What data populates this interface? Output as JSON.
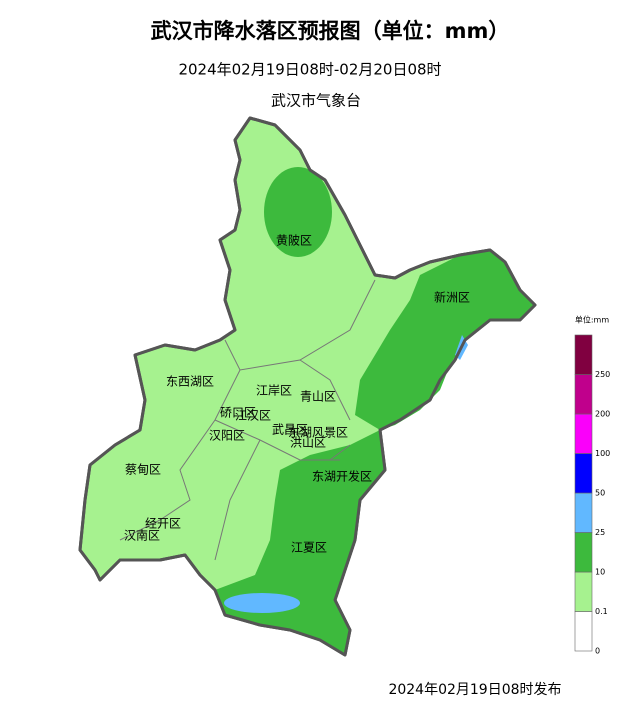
{
  "header": {
    "title": "武汉市降水落区预报图（单位：mm）",
    "subtitle": "2024年02月19日08时-02月20日08时",
    "issuer": "武汉市气象台"
  },
  "districts": [
    {
      "name": "黄陂区"
    },
    {
      "name": "新洲区"
    },
    {
      "name": "东西湖区"
    },
    {
      "name": "江岸区"
    },
    {
      "name": "青山区"
    },
    {
      "name": "硚口区"
    },
    {
      "name": "江汉区"
    },
    {
      "name": "汉阳区"
    },
    {
      "name": "武昌区"
    },
    {
      "name": "东湖风景区"
    },
    {
      "name": "洪山区"
    },
    {
      "name": "东湖开发区"
    },
    {
      "name": "蔡甸区"
    },
    {
      "name": "经开区"
    },
    {
      "name": "汉南区"
    },
    {
      "name": "江夏区"
    }
  ],
  "legend": {
    "unit": "单位:mm",
    "ticks": [
      0,
      0.1,
      10,
      25,
      50,
      100,
      200,
      250
    ],
    "colors": [
      "#ffffff",
      "#a6f28f",
      "#3dba3d",
      "#61b8ff",
      "#0000ff",
      "#fa00fa",
      "#c0008c",
      "#800040"
    ]
  },
  "footer": "2024年02月19日08时发布"
}
